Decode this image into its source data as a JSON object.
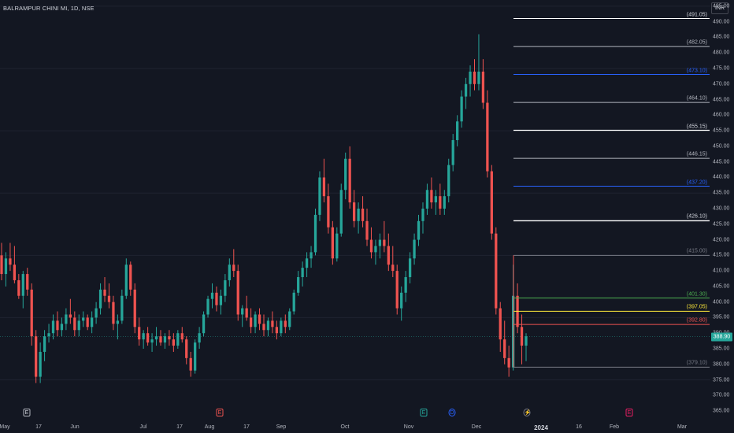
{
  "header": {
    "title": "BALRAMPUR CHINI MI, 1D, NSE",
    "currency": "INR"
  },
  "colors": {
    "up": "#26a69a",
    "down": "#ef5350",
    "bg": "#131722",
    "grid": "#1f2330"
  },
  "price_axis": {
    "ticks": [
      "495.00",
      "490.00",
      "485.00",
      "480.00",
      "475.00",
      "470.00",
      "465.00",
      "460.00",
      "455.00",
      "450.00",
      "445.00",
      "440.00",
      "435.00",
      "430.00",
      "425.00",
      "420.00",
      "415.00",
      "410.00",
      "405.00",
      "400.00",
      "395.00",
      "390.00",
      "385.00",
      "380.00",
      "375.00",
      "370.00",
      "365.00"
    ],
    "last_price": "388.90"
  },
  "time_axis": {
    "labels": [
      "May",
      "17",
      "Jun",
      "Jul",
      "17",
      "Aug",
      "17",
      "Sep",
      "Oct",
      "Nov",
      "Dec",
      "2024",
      "16",
      "Feb",
      "Mar"
    ]
  },
  "levels": [
    {
      "label": "(491.05)",
      "value": 491.05,
      "color": "#ffffff",
      "emphasis": "normal"
    },
    {
      "label": "(482.05)",
      "value": 482.05,
      "color": "#b2b5be",
      "emphasis": "normal"
    },
    {
      "label": "(473.10)",
      "value": 473.1,
      "color": "#2962ff",
      "emphasis": "normal"
    },
    {
      "label": "(464.10)",
      "value": 464.1,
      "color": "#b2b5be",
      "emphasis": "normal"
    },
    {
      "label": "(455.15)",
      "value": 455.15,
      "color": "#ffffff",
      "emphasis": "bright"
    },
    {
      "label": "(446.15)",
      "value": 446.15,
      "color": "#b2b5be",
      "emphasis": "normal"
    },
    {
      "label": "(437.20)",
      "value": 437.2,
      "color": "#2962ff",
      "emphasis": "normal"
    },
    {
      "label": "(426.10)",
      "value": 426.1,
      "color": "#ffffff",
      "emphasis": "bright"
    },
    {
      "label": "(415.00)",
      "value": 415.0,
      "color": "#787b86",
      "emphasis": "normal"
    },
    {
      "label": "(401.30)",
      "value": 401.3,
      "color": "#4caf50",
      "emphasis": "normal"
    },
    {
      "label": "(397.05)",
      "value": 397.05,
      "color": "#ffeb3b",
      "emphasis": "normal"
    },
    {
      "label": "(392.80)",
      "value": 392.8,
      "color": "#ef5350",
      "emphasis": "normal"
    },
    {
      "label": "(379.10)",
      "value": 379.1,
      "color": "#787b86",
      "emphasis": "normal"
    }
  ],
  "events": [
    {
      "type": "earnings",
      "text": "E",
      "style": "ev-e"
    },
    {
      "type": "earnings",
      "text": "E",
      "style": "ev-e-red"
    },
    {
      "type": "earnings",
      "text": "E",
      "style": "ev-e-green"
    },
    {
      "type": "dividend",
      "text": "D",
      "style": "ev-d"
    },
    {
      "type": "split",
      "text": "⚡",
      "style": "ev-split"
    },
    {
      "type": "earnings",
      "text": "E",
      "style": "ev-e-pink"
    }
  ],
  "chart_data": {
    "type": "candlestick",
    "series": [
      {
        "values": [
          [
            415,
            419,
            407,
            409
          ],
          [
            409,
            416,
            405,
            414
          ],
          [
            414,
            419,
            410,
            412
          ],
          [
            412,
            418,
            406,
            407
          ],
          [
            407,
            409,
            401,
            402
          ],
          [
            402,
            410,
            398,
            409
          ],
          [
            409,
            411,
            402,
            404
          ],
          [
            404,
            406,
            386,
            389
          ],
          [
            389,
            391,
            374,
            376
          ],
          [
            376,
            387,
            374,
            384
          ],
          [
            384,
            391,
            381,
            389
          ],
          [
            389,
            393,
            387,
            390
          ],
          [
            390,
            396,
            388,
            394
          ],
          [
            394,
            397,
            389,
            391
          ],
          [
            391,
            395,
            389,
            393
          ],
          [
            393,
            398,
            391,
            396
          ],
          [
            396,
            401,
            393,
            395
          ],
          [
            395,
            397,
            389,
            391
          ],
          [
            391,
            396,
            389,
            394
          ],
          [
            394,
            397,
            392,
            395
          ],
          [
            395,
            396,
            391,
            392
          ],
          [
            392,
            397,
            390,
            395
          ],
          [
            395,
            400,
            393,
            398
          ],
          [
            398,
            406,
            396,
            404
          ],
          [
            404,
            408,
            400,
            402
          ],
          [
            402,
            406,
            398,
            400
          ],
          [
            400,
            402,
            391,
            393
          ],
          [
            393,
            396,
            388,
            394
          ],
          [
            394,
            404,
            393,
            402
          ],
          [
            402,
            414,
            401,
            412
          ],
          [
            412,
            413,
            402,
            404
          ],
          [
            404,
            406,
            390,
            392
          ],
          [
            392,
            395,
            386,
            388
          ],
          [
            388,
            391,
            385,
            390
          ],
          [
            390,
            392,
            386,
            387
          ],
          [
            387,
            390,
            384,
            388
          ],
          [
            388,
            392,
            386,
            389
          ],
          [
            389,
            391,
            386,
            387
          ],
          [
            387,
            390,
            385,
            389
          ],
          [
            389,
            391,
            386,
            388
          ],
          [
            388,
            390,
            384,
            386
          ],
          [
            386,
            391,
            385,
            390
          ],
          [
            390,
            392,
            387,
            388
          ],
          [
            388,
            389,
            380,
            382
          ],
          [
            382,
            384,
            376,
            378
          ],
          [
            378,
            388,
            377,
            387
          ],
          [
            387,
            392,
            385,
            390
          ],
          [
            390,
            397,
            389,
            396
          ],
          [
            396,
            402,
            395,
            401
          ],
          [
            401,
            406,
            398,
            403
          ],
          [
            403,
            405,
            397,
            399
          ],
          [
            399,
            404,
            396,
            402
          ],
          [
            402,
            409,
            400,
            407
          ],
          [
            407,
            414,
            405,
            412
          ],
          [
            412,
            417,
            408,
            410
          ],
          [
            410,
            412,
            394,
            396
          ],
          [
            396,
            399,
            392,
            398
          ],
          [
            398,
            402,
            394,
            395
          ],
          [
            395,
            398,
            390,
            392
          ],
          [
            392,
            397,
            390,
            396
          ],
          [
            396,
            398,
            391,
            393
          ],
          [
            393,
            396,
            389,
            391
          ],
          [
            391,
            395,
            389,
            394
          ],
          [
            394,
            397,
            390,
            392
          ],
          [
            392,
            394,
            388,
            390
          ],
          [
            390,
            395,
            389,
            394
          ],
          [
            394,
            396,
            390,
            392
          ],
          [
            392,
            398,
            391,
            397
          ],
          [
            397,
            404,
            396,
            403
          ],
          [
            403,
            410,
            402,
            408
          ],
          [
            408,
            413,
            405,
            411
          ],
          [
            411,
            416,
            408,
            414
          ],
          [
            414,
            418,
            411,
            416
          ],
          [
            416,
            430,
            415,
            428
          ],
          [
            428,
            442,
            426,
            440
          ],
          [
            440,
            446,
            432,
            434
          ],
          [
            434,
            438,
            422,
            424
          ],
          [
            424,
            426,
            412,
            414
          ],
          [
            414,
            424,
            413,
            422
          ],
          [
            422,
            438,
            421,
            436
          ],
          [
            436,
            448,
            433,
            446
          ],
          [
            446,
            450,
            430,
            432
          ],
          [
            432,
            436,
            424,
            426
          ],
          [
            426,
            432,
            422,
            430
          ],
          [
            430,
            434,
            424,
            426
          ],
          [
            426,
            430,
            418,
            420
          ],
          [
            420,
            424,
            414,
            416
          ],
          [
            416,
            420,
            412,
            418
          ],
          [
            418,
            422,
            414,
            420
          ],
          [
            420,
            426,
            416,
            418
          ],
          [
            418,
            422,
            410,
            412
          ],
          [
            412,
            418,
            408,
            410
          ],
          [
            410,
            412,
            396,
            398
          ],
          [
            398,
            405,
            394,
            403
          ],
          [
            403,
            410,
            400,
            408
          ],
          [
            408,
            416,
            406,
            414
          ],
          [
            414,
            422,
            412,
            420
          ],
          [
            420,
            428,
            418,
            426
          ],
          [
            426,
            432,
            422,
            430
          ],
          [
            430,
            438,
            428,
            436
          ],
          [
            436,
            440,
            430,
            432
          ],
          [
            432,
            436,
            428,
            434
          ],
          [
            434,
            438,
            428,
            430
          ],
          [
            430,
            436,
            428,
            434
          ],
          [
            434,
            446,
            432,
            444
          ],
          [
            444,
            454,
            442,
            452
          ],
          [
            452,
            460,
            450,
            458
          ],
          [
            458,
            468,
            456,
            466
          ],
          [
            466,
            472,
            462,
            470
          ],
          [
            470,
            476,
            466,
            474
          ],
          [
            474,
            478,
            468,
            470
          ],
          [
            470,
            486,
            468,
            474
          ],
          [
            474,
            478,
            462,
            464
          ],
          [
            464,
            468,
            440,
            442
          ],
          [
            442,
            444,
            420,
            422
          ],
          [
            422,
            424,
            396,
            398
          ],
          [
            398,
            400,
            384,
            388
          ],
          [
            388,
            394,
            380,
            382
          ],
          [
            382,
            386,
            376,
            379
          ],
          [
            379,
            412,
            378,
            402
          ],
          [
            402,
            406,
            390,
            392
          ],
          [
            392,
            396,
            380,
            386
          ],
          [
            386,
            390,
            381,
            389
          ]
        ]
      }
    ],
    "ylim": [
      363,
      497
    ]
  }
}
